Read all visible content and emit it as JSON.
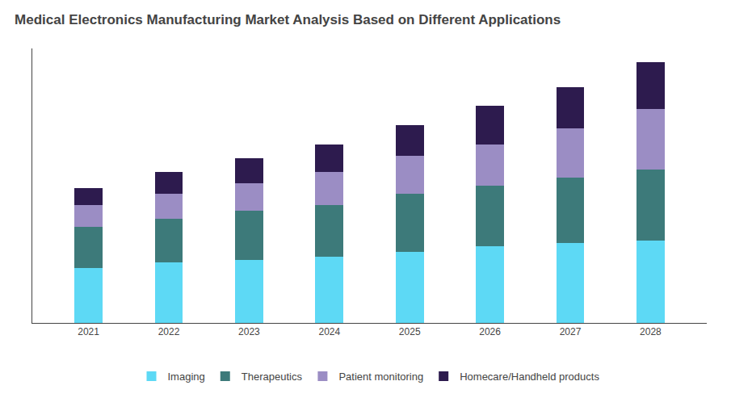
{
  "chart_data": {
    "type": "bar",
    "title": "Medical Electronics Manufacturing Market Analysis Based on Different Applications",
    "x": [
      2021,
      2022,
      2023,
      2024,
      2025,
      2026,
      2027,
      2028
    ],
    "series": [
      {
        "name": "Imaging",
        "color": "#5DD9F5",
        "values": [
          20,
          22,
          23,
          24,
          26,
          28,
          29,
          30
        ]
      },
      {
        "name": "Therapeutics",
        "color": "#3D7A7A",
        "values": [
          15,
          16,
          18,
          19,
          21,
          22,
          24,
          26
        ]
      },
      {
        "name": "Patient monitoring",
        "color": "#9B8DC4",
        "values": [
          8,
          9,
          10,
          12,
          14,
          15,
          18,
          22
        ]
      },
      {
        "name": "Homecare/Handheld products",
        "color": "#2D1B4E",
        "values": [
          6,
          8,
          9,
          10,
          11,
          14,
          15,
          17
        ]
      }
    ],
    "xlim": [
      2020.3,
      2028.7
    ],
    "xticks": [
      2021,
      2022,
      2023,
      2024,
      2025,
      2026,
      2027,
      2028
    ],
    "ylim": [
      0,
      100
    ],
    "stacked": true,
    "grid": false,
    "legend": "bottom",
    "tick_labels": "x"
  }
}
